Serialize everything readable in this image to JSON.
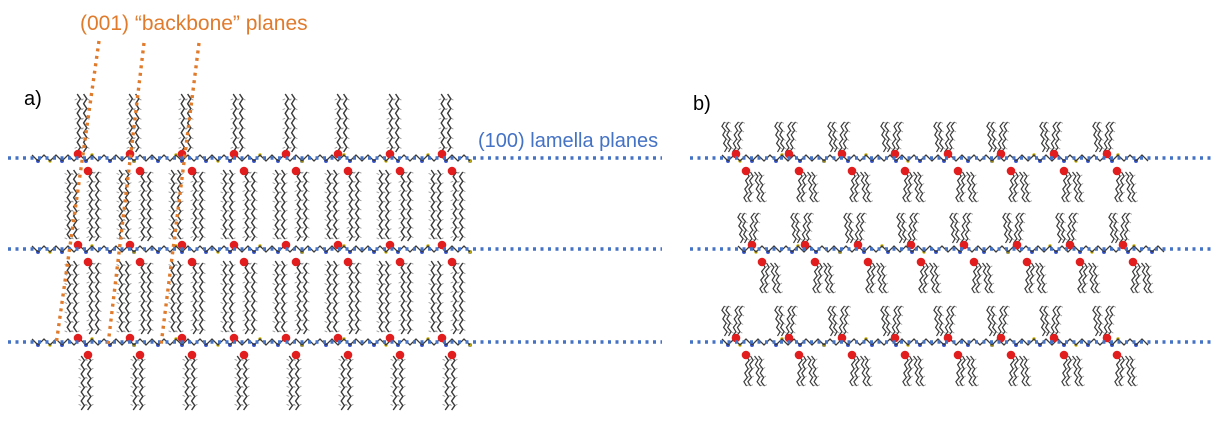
{
  "labels": {
    "panel_a": "a)",
    "panel_b": "b)",
    "backbone_planes": "(001) “backbone” planes",
    "lamella_planes": "(100) lamella planes"
  },
  "colors": {
    "backbone_accent": "#E07B2C",
    "lamella_accent": "#4472C4",
    "oxygen_atom": "#E11D1D",
    "nitrogen_atom": "#3B5BD6",
    "carbon_chain": "#3A3A3A",
    "hydrogen_tick": "#9A9A9A"
  },
  "structure": {
    "panel_a": {
      "packing": "interdigitated",
      "side_chain_shape": "straight",
      "layers": 3,
      "chains_per_layer": 8
    },
    "panel_b": {
      "packing": "non-interdigitated",
      "side_chain_shape": "branched",
      "layers": 3,
      "chains_per_layer": 8
    }
  }
}
